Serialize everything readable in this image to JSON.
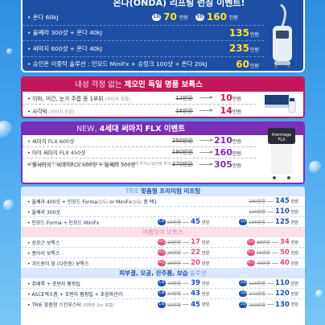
{
  "onda": {
    "title": "온다(ONDA) 리프팅 런칭 이벤트!",
    "rows": [
      {
        "label": "• 온다 60kJ",
        "tag1": "1회",
        "price1": "70",
        "tag2": "3회",
        "price2": "160",
        "unit": "만원"
      },
      {
        "label": "• 울쎄라 300샷 + 온다 40kJ",
        "price": "135",
        "unit": "만원"
      },
      {
        "label": "• 써마지 600샷 + 온다 40kJ",
        "price": "235",
        "unit": "만원"
      },
      {
        "label": "• 슈인온 이중턱 솔루션 : 인모드 MiniFx + 슈링크 100샷 + 온다 20kJ",
        "price": "60",
        "unit": "만원"
      }
    ]
  },
  "xo": {
    "title_light": "내성 걱정 없는 ",
    "title_bold": "제오민 독일 명품 보톡스",
    "rows": [
      {
        "label": "• 이마, 미간, 눈가 주름 중 1부위",
        "sub": "(리터치 포함)",
        "old": "12만원",
        "new": "10",
        "unit": "만원"
      },
      {
        "label": "• 사각턱",
        "sub": "(리터치 포함)",
        "old": "16만원",
        "new": "14",
        "unit": "만원"
      }
    ]
  },
  "flx": {
    "title_light": "NEW, ",
    "title_bold": "4세대 써마지 FLX 이벤트",
    "rows": [
      {
        "label": "• 써마지 FLX 600샷",
        "old": "250만원",
        "new": "210",
        "unit": "만원"
      },
      {
        "label": "• 아이 써마지 FLX 450샷",
        "old": "190만원",
        "new": "160",
        "unit": "만원"
      },
      {
        "label": "• 울써타시 : 써마지FLX 600샷 + 울쎄라 300샷",
        "old": "370만원",
        "new": "305",
        "unit": "만원"
      }
    ],
    "note": "(울쎄라 100샷 추가시 25만원 추가 / 울쎄라 100샷+써마지 FLX 100샷 추가시 35만원 추가)"
  },
  "trie": {
    "title_light": "TRIE ",
    "title_bold": "맞춤형 프리미엄 리프팅",
    "rows": [
      {
        "label": "• 울쎄라 400샷 + 인모드 Forma",
        "sub": "(단독)",
        "label2": " or MiniFx",
        "sub2": "(단독)",
        "label3": " 중 택1",
        "old": "180만원",
        "new": "145",
        "unit": "만원"
      },
      {
        "label": "• 울쎄라 300샷",
        "old": "120만원",
        "new": "110",
        "unit": "만원"
      },
      {
        "label": "• 인모드 Forma + 인모드 MiniFx",
        "tag1": "1회",
        "old1": "55만원",
        "new1": "45",
        "tag2": "3회",
        "old2": "165만원",
        "new2": "125",
        "unit": "만원"
      }
    ]
  },
  "botox": {
    "title": "여름맞이 보톡스",
    "rows": [
      {
        "label": "• 승모근 보톡스",
        "tag1": "국산",
        "old1": "20만원",
        "new1": "17",
        "tag2": "외산",
        "old2": "38만원",
        "new2": "34",
        "unit": "만원"
      },
      {
        "label": "• 종아리 보톡스",
        "tag1": "국산",
        "old1": "25만원",
        "new1": "22",
        "tag2": "외산",
        "old2": "55만원",
        "new2": "50",
        "unit": "만원"
      },
      {
        "label": "• 겨드랑이 땀 (다한증) 보톡스",
        "tag1": "국산",
        "old1": "25만원",
        "new1": "20",
        "tag2": "외산",
        "old2": "45만원",
        "new2": "40",
        "unit": "만원"
      }
    ]
  },
  "skin": {
    "title_bold": "피부결, 모공, 잔주름, 보습",
    "title_light": " 솔루션",
    "rows": [
      {
        "label": "• 쥬베룩 + 포텐자 펌핑팁",
        "tag1": "1회",
        "old1": "42만원",
        "new1": "39",
        "tag2": "3회",
        "old2": "126만원",
        "new2": "110",
        "unit": "만원"
      },
      {
        "label": "• ASCE엑소좀 + 포텐자 펌핑팁 + 초음파관리",
        "tag1": "1회",
        "old1": "47만원",
        "new1": "43",
        "tag2": "3회",
        "old2": "141만원",
        "new2": "120",
        "unit": "만원"
      },
      {
        "label": "• TRIE 맞춤형 스킨부스터",
        "sub": "(리쥬란 2cc 포함)",
        "tag1": "1회",
        "old1": "50만원",
        "new1": "45",
        "tag2": "3회",
        "old2": "150만원",
        "new2": "130",
        "unit": "만원"
      }
    ]
  },
  "colors": {
    "navy": "#1d4fa4",
    "magenta": "#c2185b",
    "purple": "#7b2fb3",
    "yellow": "#ffe033",
    "pink": "#e04c7c"
  }
}
